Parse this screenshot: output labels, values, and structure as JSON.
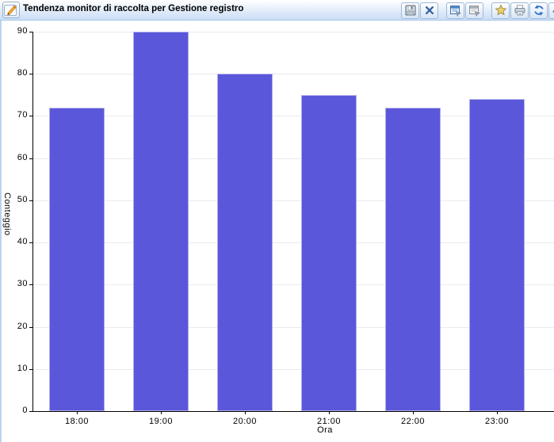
{
  "window": {
    "title": "Tendenza monitor di raccolta per Gestione registro",
    "title_icon": "pencil-edit-icon",
    "toolbar_icons": [
      "save-icon",
      "close-icon",
      "monitor-config-icon",
      "monitor-config-gray-icon",
      "favorite-star-icon",
      "print-icon",
      "refresh-icon",
      "tag-icon"
    ]
  },
  "colors": {
    "titlebar_top": "#ffffff",
    "titlebar_bottom": "#c9ddf6",
    "titlebar_border": "#a9c6e8",
    "window_left_border": "#b9d3ee",
    "button_border": "#9fb9d6",
    "bar_fill": "#5a57da",
    "bar_edge": "#b0aeeb",
    "gridline": "#eaeaf1",
    "axis": "#000000"
  },
  "chart_data": {
    "type": "bar",
    "title": "Tendenza monitor di raccolta per Gestione registro",
    "categories": [
      "18:00",
      "19:00",
      "20:00",
      "21:00",
      "22:00",
      "23:00"
    ],
    "values": [
      72,
      90,
      80,
      75,
      72,
      74
    ],
    "xlabel": "Ora",
    "ylabel": "Conteggio",
    "ylim": [
      0,
      90
    ],
    "yticks": [
      0,
      10,
      20,
      30,
      40,
      50,
      60,
      70,
      80,
      90
    ],
    "grid": true,
    "legend": "none",
    "bar_color": "#5a57da",
    "bar_edge_color": "#b0aeeb",
    "gridline_color": "#eaeaf1"
  }
}
